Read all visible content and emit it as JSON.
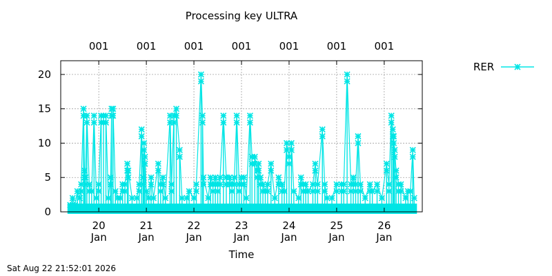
{
  "timestamp": "Sat Aug 22 21:52:01 2026",
  "chart_data": {
    "type": "line",
    "title": "Processing key ULTRA",
    "xlabel": "Time",
    "ylabel": "",
    "ylim": [
      0,
      22
    ],
    "xlim": [
      19.2,
      26.8
    ],
    "yticks": [
      0,
      5,
      10,
      15,
      20
    ],
    "xticks": [
      {
        "value": 20,
        "day": "20",
        "month": "Jan"
      },
      {
        "value": 21,
        "day": "21",
        "month": "Jan"
      },
      {
        "value": 22,
        "day": "22",
        "month": "Jan"
      },
      {
        "value": 23,
        "day": "23",
        "month": "Jan"
      },
      {
        "value": 24,
        "day": "24",
        "month": "Jan"
      },
      {
        "value": 25,
        "day": "25",
        "month": "Jan"
      },
      {
        "value": 26,
        "day": "26",
        "month": "Jan"
      }
    ],
    "top_ticks": [
      {
        "value": 20,
        "label": "001"
      },
      {
        "value": 21,
        "label": "001"
      },
      {
        "value": 22,
        "label": "001"
      },
      {
        "value": 23,
        "label": "001"
      },
      {
        "value": 24,
        "label": "001"
      },
      {
        "value": 25,
        "label": "001"
      },
      {
        "value": 26,
        "label": "001"
      }
    ],
    "grid": true,
    "legend_position": "right",
    "series": [
      {
        "name": "RER",
        "color": "#00e5e5",
        "marker": "x-star",
        "style": "impulses",
        "points": [
          [
            19.4,
            1
          ],
          [
            19.45,
            2
          ],
          [
            19.5,
            1
          ],
          [
            19.55,
            3
          ],
          [
            19.6,
            2
          ],
          [
            19.63,
            4
          ],
          [
            19.68,
            15
          ],
          [
            19.7,
            6
          ],
          [
            19.72,
            5
          ],
          [
            19.75,
            14
          ],
          [
            19.8,
            4
          ],
          [
            19.85,
            3
          ],
          [
            19.9,
            14
          ],
          [
            19.95,
            2
          ],
          [
            20.0,
            4
          ],
          [
            20.05,
            14
          ],
          [
            20.1,
            14
          ],
          [
            20.15,
            14
          ],
          [
            20.2,
            2
          ],
          [
            20.25,
            5
          ],
          [
            20.27,
            15
          ],
          [
            20.3,
            15
          ],
          [
            20.35,
            3
          ],
          [
            20.4,
            2
          ],
          [
            20.45,
            2
          ],
          [
            20.5,
            4
          ],
          [
            20.55,
            4
          ],
          [
            20.6,
            7
          ],
          [
            20.62,
            6
          ],
          [
            20.7,
            2
          ],
          [
            20.8,
            2
          ],
          [
            20.85,
            4
          ],
          [
            20.9,
            12
          ],
          [
            20.93,
            5
          ],
          [
            20.95,
            10
          ],
          [
            20.97,
            8
          ],
          [
            21.0,
            3
          ],
          [
            21.05,
            2
          ],
          [
            21.1,
            5
          ],
          [
            21.15,
            2
          ],
          [
            21.25,
            7
          ],
          [
            21.3,
            4
          ],
          [
            21.35,
            5
          ],
          [
            21.4,
            2
          ],
          [
            21.5,
            14
          ],
          [
            21.53,
            4
          ],
          [
            21.58,
            14
          ],
          [
            21.63,
            15
          ],
          [
            21.7,
            9
          ],
          [
            21.75,
            2
          ],
          [
            21.85,
            2
          ],
          [
            21.9,
            3
          ],
          [
            22.0,
            2
          ],
          [
            22.05,
            4
          ],
          [
            22.15,
            20
          ],
          [
            22.18,
            14
          ],
          [
            22.2,
            5
          ],
          [
            22.3,
            2
          ],
          [
            22.35,
            5
          ],
          [
            22.4,
            4
          ],
          [
            22.45,
            5
          ],
          [
            22.5,
            4
          ],
          [
            22.55,
            5
          ],
          [
            22.62,
            14
          ],
          [
            22.68,
            5
          ],
          [
            22.75,
            5
          ],
          [
            22.8,
            4
          ],
          [
            22.85,
            5
          ],
          [
            22.9,
            14
          ],
          [
            22.95,
            4
          ],
          [
            23.0,
            5
          ],
          [
            23.05,
            5
          ],
          [
            23.1,
            2
          ],
          [
            23.18,
            14
          ],
          [
            23.22,
            8
          ],
          [
            23.28,
            8
          ],
          [
            23.33,
            6
          ],
          [
            23.36,
            7
          ],
          [
            23.4,
            5
          ],
          [
            23.45,
            4
          ],
          [
            23.5,
            3
          ],
          [
            23.55,
            4
          ],
          [
            23.62,
            7
          ],
          [
            23.7,
            2
          ],
          [
            23.78,
            5
          ],
          [
            23.85,
            4
          ],
          [
            23.9,
            3
          ],
          [
            23.95,
            10
          ],
          [
            24.0,
            8
          ],
          [
            24.05,
            10
          ],
          [
            24.1,
            3
          ],
          [
            24.2,
            2
          ],
          [
            24.25,
            5
          ],
          [
            24.3,
            4
          ],
          [
            24.35,
            4
          ],
          [
            24.4,
            3
          ],
          [
            24.5,
            4
          ],
          [
            24.55,
            7
          ],
          [
            24.6,
            4
          ],
          [
            24.7,
            12
          ],
          [
            24.75,
            4
          ],
          [
            24.8,
            2
          ],
          [
            24.9,
            2
          ],
          [
            25.0,
            4
          ],
          [
            25.1,
            4
          ],
          [
            25.15,
            4
          ],
          [
            25.22,
            20
          ],
          [
            25.3,
            4
          ],
          [
            25.35,
            5
          ],
          [
            25.4,
            4
          ],
          [
            25.45,
            11
          ],
          [
            25.5,
            4
          ],
          [
            25.6,
            2
          ],
          [
            25.7,
            4
          ],
          [
            25.75,
            3
          ],
          [
            25.85,
            4
          ],
          [
            25.95,
            2
          ],
          [
            26.05,
            7
          ],
          [
            26.1,
            4
          ],
          [
            26.15,
            14
          ],
          [
            26.18,
            12
          ],
          [
            26.2,
            11
          ],
          [
            26.22,
            9
          ],
          [
            26.25,
            6
          ],
          [
            26.3,
            4
          ],
          [
            26.35,
            4
          ],
          [
            26.45,
            2
          ],
          [
            26.5,
            3
          ],
          [
            26.55,
            3
          ],
          [
            26.6,
            9
          ],
          [
            26.63,
            2
          ]
        ]
      }
    ]
  }
}
